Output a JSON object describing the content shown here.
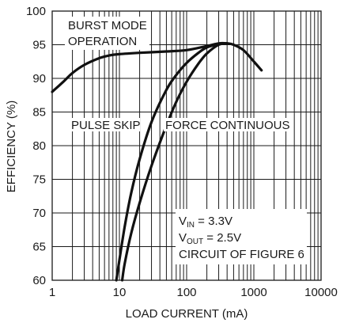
{
  "chart_data": {
    "type": "line",
    "xlabel": "LOAD CURRENT (mA)",
    "ylabel": "EFFICIENCY (%)",
    "xscale": "log",
    "xlim": [
      1,
      10000
    ],
    "ylim": [
      60,
      100
    ],
    "xticks": [
      1,
      10,
      100,
      1000,
      10000
    ],
    "xtick_labels": [
      "1",
      "10",
      "100",
      "1000",
      "10000"
    ],
    "yticks": [
      60,
      65,
      70,
      75,
      80,
      85,
      90,
      95,
      100
    ],
    "ytick_labels": [
      "60",
      "65",
      "70",
      "75",
      "80",
      "85",
      "90",
      "95",
      "100"
    ],
    "grid": true,
    "annotations": {
      "burst_line1": "BURST MODE",
      "burst_line2": "OPERATION",
      "pulse_skip": "PULSE SKIP",
      "force_continuous": "FORCE CONTINUOUS",
      "cond1_main": "V",
      "cond1_sub": "IN",
      "cond1_rest": " = 3.3V",
      "cond2_main": "V",
      "cond2_sub": "OUT",
      "cond2_rest": " = 2.5V",
      "cond3": "CIRCUIT OF FIGURE 6"
    },
    "series": [
      {
        "points": [
          [
            1,
            88
          ],
          [
            1.5,
            89.6
          ],
          [
            2,
            90.8
          ],
          [
            3,
            92
          ],
          [
            5,
            93
          ],
          [
            7,
            93.4
          ],
          [
            10,
            93.6
          ],
          [
            20,
            93.8
          ],
          [
            50,
            94
          ],
          [
            100,
            94.2
          ],
          [
            200,
            94.8
          ],
          [
            300,
            95.2
          ],
          [
            400,
            95.2
          ],
          [
            500,
            95
          ],
          [
            700,
            94.2
          ],
          [
            1000,
            92.5
          ],
          [
            1300,
            91.2
          ]
        ]
      },
      {
        "points": [
          [
            9,
            60
          ],
          [
            10,
            63
          ],
          [
            12,
            68
          ],
          [
            15,
            73
          ],
          [
            20,
            78
          ],
          [
            30,
            83.5
          ],
          [
            50,
            88.3
          ],
          [
            70,
            90.5
          ],
          [
            100,
            92.3
          ],
          [
            150,
            93.8
          ],
          [
            200,
            94.6
          ],
          [
            300,
            95.1
          ],
          [
            400,
            95.2
          ]
        ]
      },
      {
        "points": [
          [
            11,
            60
          ],
          [
            12,
            62.5
          ],
          [
            15,
            67
          ],
          [
            20,
            71.5
          ],
          [
            30,
            77
          ],
          [
            50,
            83
          ],
          [
            70,
            86.5
          ],
          [
            100,
            89.5
          ],
          [
            150,
            92.2
          ],
          [
            200,
            93.7
          ],
          [
            300,
            95
          ],
          [
            400,
            95.2
          ]
        ]
      }
    ]
  }
}
